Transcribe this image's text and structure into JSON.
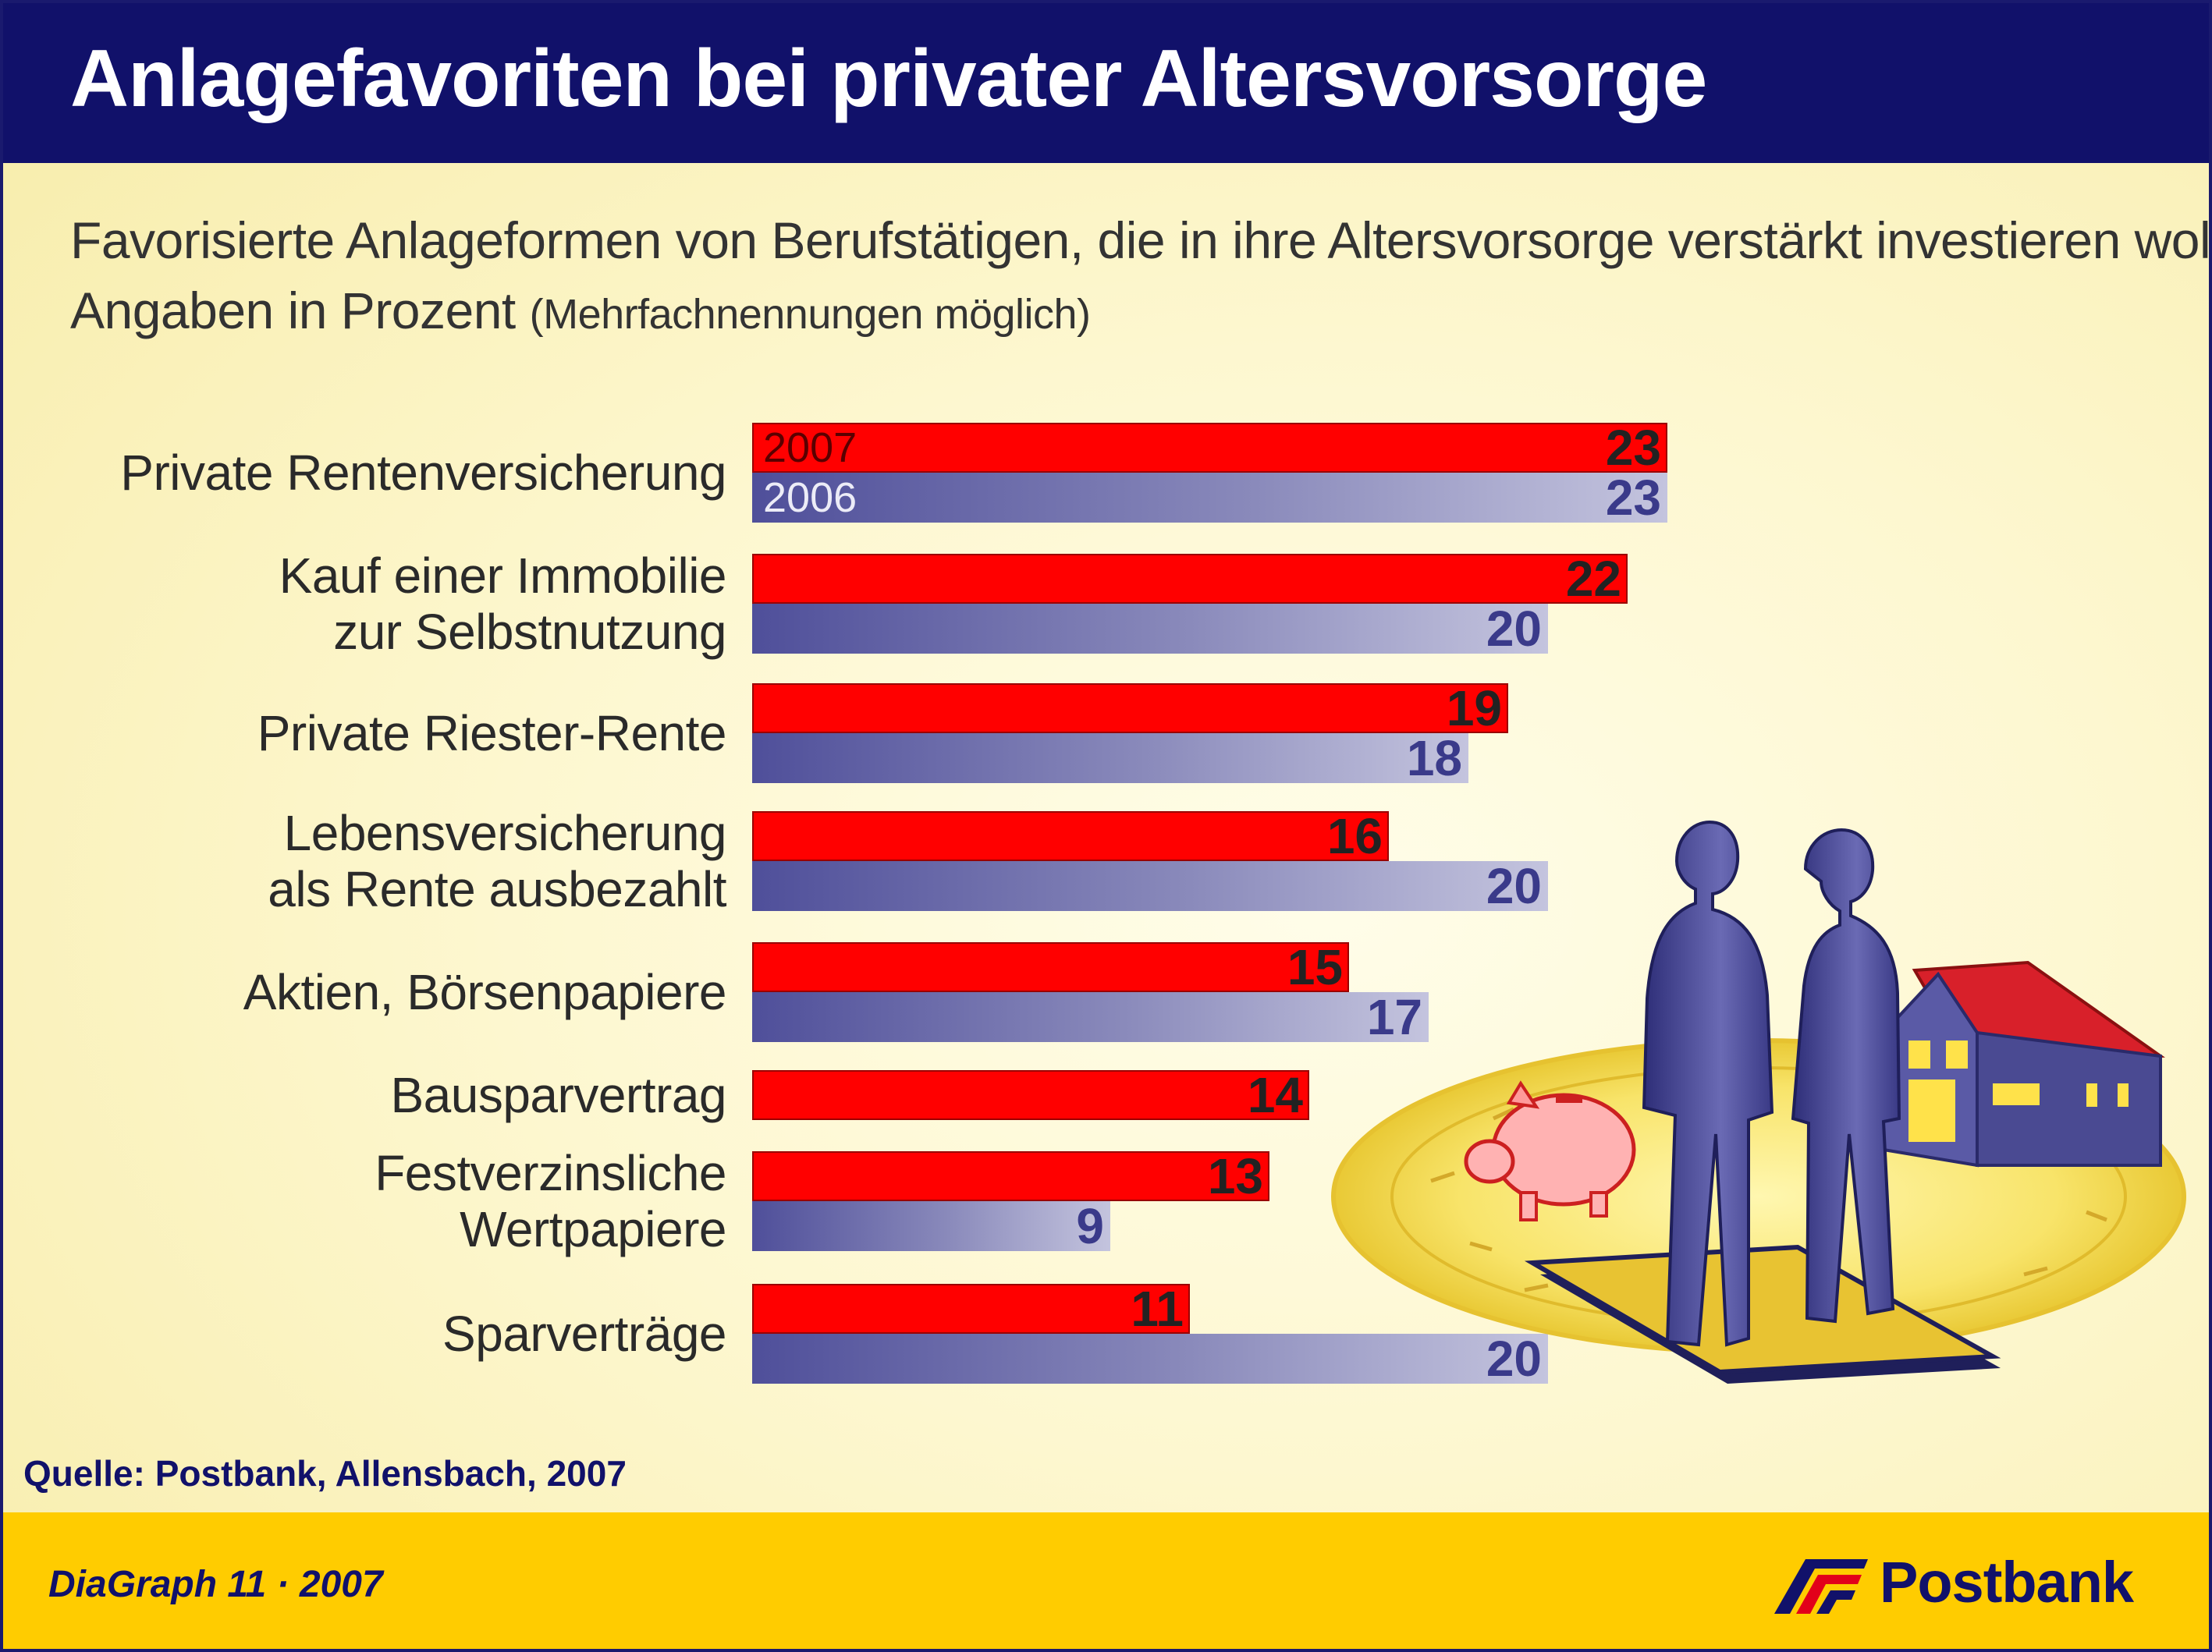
{
  "title": "Anlagefavoriten bei privater Altersvorsorge",
  "subtitle": "Favorisierte Anlageformen von Berufstätigen, die in ihre Altersvorsorge verstärkt investieren wollen",
  "unit_label": "Angaben in Prozent",
  "note": "(Mehrfachnennungen möglich)",
  "source": "Quelle: Postbank, Allensbach, 2007",
  "footer": {
    "diagraph": "DiaGraph 11 · 2007",
    "brand": "Postbank"
  },
  "icons": [
    "postbank-logo-icon",
    "people-silhouette-icon",
    "piggy-bank-icon",
    "house-icon",
    "coin-icon"
  ],
  "colors": {
    "series_2007": "#ff0000",
    "series_2006": "#6a6aa8",
    "header": "#11116a",
    "footer": "#ffcc00"
  },
  "chart_data": {
    "type": "bar",
    "orientation": "horizontal",
    "title": "Anlagefavoriten bei privater Altersvorsorge",
    "categories": [
      "Private Rentenversicherung",
      "Kauf einer Immobilie zur Selbstnutzung",
      "Private Riester-Rente",
      "Lebensversicherung als Rente ausbezahlt",
      "Aktien, Börsenpapiere",
      "Bausparvertrag",
      "Festverzinsliche Wertpapiere",
      "Sparverträge"
    ],
    "category_lines": [
      [
        "Private Rentenversicherung"
      ],
      [
        "Kauf einer Immobilie",
        "zur Selbstnutzung"
      ],
      [
        "Private Riester-Rente"
      ],
      [
        "Lebensversicherung",
        "als Rente ausbezahlt"
      ],
      [
        "Aktien, Börsenpapiere"
      ],
      [
        "Bausparvertrag"
      ],
      [
        "Festverzinsliche",
        "Wertpapiere"
      ],
      [
        "Sparverträge"
      ]
    ],
    "series": [
      {
        "name": "2007",
        "values": [
          23,
          22,
          19,
          16,
          15,
          14,
          13,
          11
        ]
      },
      {
        "name": "2006",
        "values": [
          23,
          20,
          18,
          20,
          17,
          null,
          9,
          20
        ]
      }
    ],
    "value_labels_shown": true,
    "legend": "inline in first bar pair"
  }
}
